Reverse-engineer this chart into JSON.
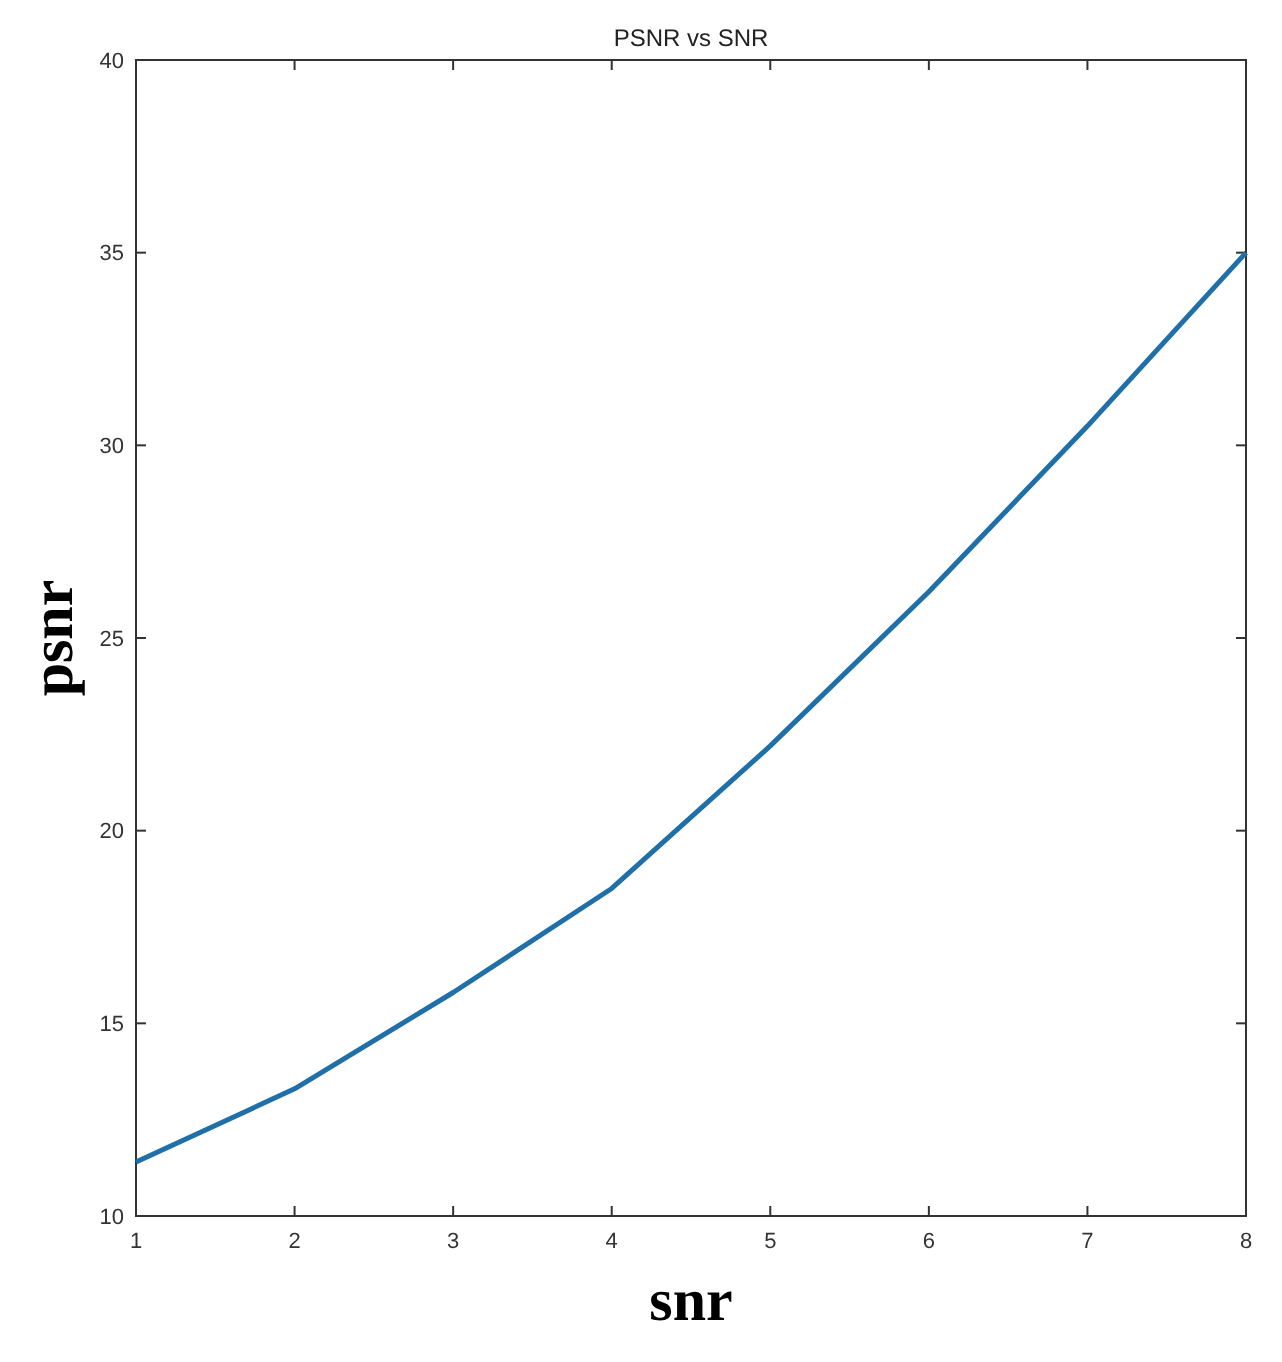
{
  "chart_data": {
    "type": "line",
    "title": "PSNR vs SNR",
    "xlabel": "snr",
    "ylabel": "psnr",
    "x": [
      1,
      2,
      3,
      4,
      5,
      6,
      7,
      8
    ],
    "series": [
      {
        "color": "#1f6fa8",
        "values": [
          11.4,
          13.3,
          15.8,
          18.5,
          22.2,
          26.2,
          30.5,
          35
        ]
      }
    ],
    "xlim": [
      1,
      8
    ],
    "xticks": [
      1,
      2,
      3,
      4,
      5,
      6,
      7,
      8
    ],
    "ylim": [
      10,
      40
    ],
    "yticks": [
      10,
      15,
      20,
      25,
      30,
      35,
      40
    ],
    "grid": false
  }
}
